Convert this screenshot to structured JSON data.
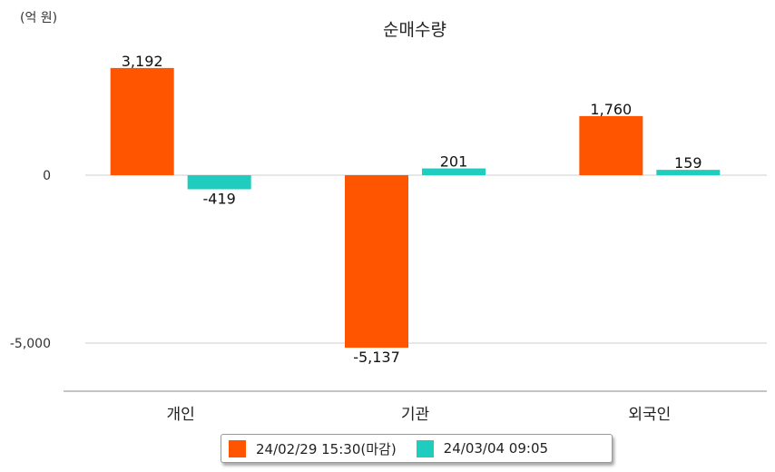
{
  "unit_label": "(억 원)",
  "title": "순매수량",
  "chart_data": {
    "type": "bar",
    "title": "순매수량",
    "unit": "(억 원)",
    "categories": [
      "개인",
      "기관",
      "외국인"
    ],
    "series": [
      {
        "name": "24/02/29 15:30(마감)",
        "color": "#ff5500",
        "values": [
          3192,
          -5137,
          1760
        ],
        "labels": [
          "3,192",
          "-5,137",
          "1,760"
        ]
      },
      {
        "name": "24/03/04 09:05",
        "color": "#1fcdbf",
        "values": [
          -419,
          201,
          159
        ],
        "labels": [
          "-419",
          "201",
          "159"
        ]
      }
    ],
    "y_ticks": [
      0,
      -5000
    ],
    "y_tick_labels": [
      "0",
      "-5,000"
    ],
    "ylim": [
      -6500,
      4000
    ],
    "grid": true,
    "legend_position": "bottom-center"
  }
}
